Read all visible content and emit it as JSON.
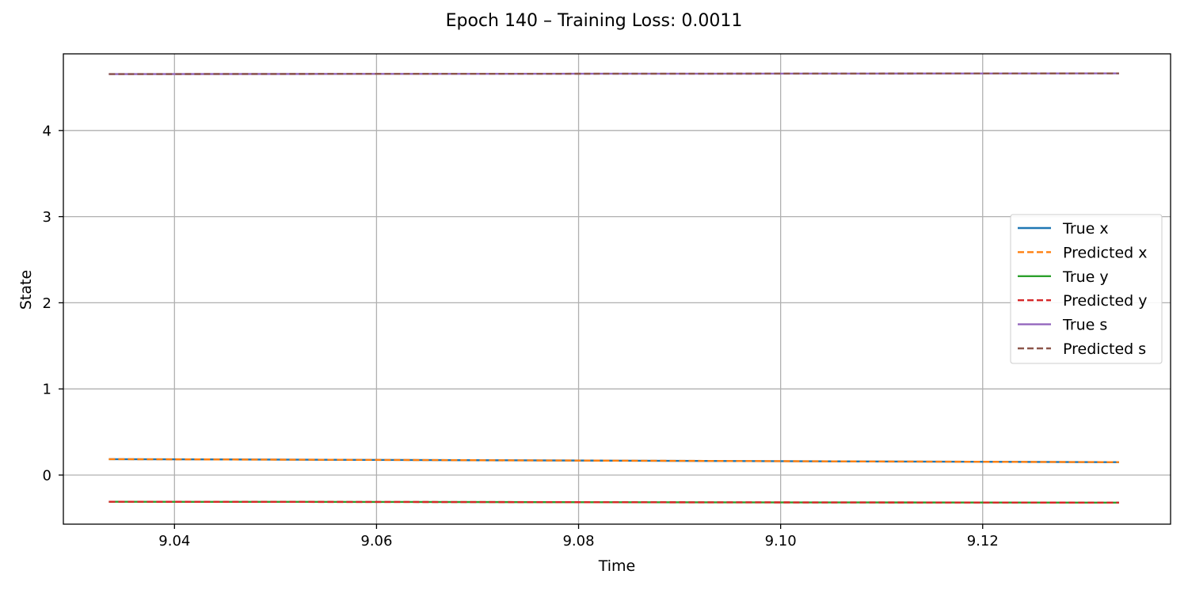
{
  "chart_data": {
    "type": "line",
    "title": "Epoch 140 – Training Loss: 0.0011",
    "xlabel": "Time",
    "ylabel": "State",
    "xlim": [
      9.029,
      9.1386
    ],
    "ylim": [
      -0.57,
      4.89
    ],
    "xticks": [
      9.04,
      9.06,
      9.08,
      9.1,
      9.12
    ],
    "xtick_labels": [
      "9.04",
      "9.06",
      "9.08",
      "9.10",
      "9.12"
    ],
    "yticks": [
      0,
      1,
      2,
      3,
      4
    ],
    "ytick_labels": [
      "0",
      "1",
      "2",
      "3",
      "4"
    ],
    "grid": true,
    "legend_position": "center-right",
    "series": [
      {
        "name": "True x",
        "color": "#1f77b4",
        "dash": false,
        "x": [
          9.0335,
          9.0585,
          9.0835,
          9.1085,
          9.1335
        ],
        "y": [
          0.185,
          0.176,
          0.167,
          0.158,
          0.15
        ]
      },
      {
        "name": "Predicted x",
        "color": "#ff7f0e",
        "dash": true,
        "x": [
          9.0335,
          9.0585,
          9.0835,
          9.1085,
          9.1335
        ],
        "y": [
          0.185,
          0.176,
          0.167,
          0.158,
          0.15
        ]
      },
      {
        "name": "True y",
        "color": "#2ca02c",
        "dash": false,
        "x": [
          9.0335,
          9.0585,
          9.0835,
          9.1085,
          9.1335
        ],
        "y": [
          -0.31,
          -0.312,
          -0.315,
          -0.318,
          -0.32
        ]
      },
      {
        "name": "Predicted y",
        "color": "#d62728",
        "dash": true,
        "x": [
          9.0335,
          9.0585,
          9.0835,
          9.1085,
          9.1335
        ],
        "y": [
          -0.31,
          -0.312,
          -0.315,
          -0.318,
          -0.32
        ]
      },
      {
        "name": "True s",
        "color": "#9467bd",
        "dash": false,
        "x": [
          9.0335,
          9.0585,
          9.0835,
          9.1085,
          9.1335
        ],
        "y": [
          4.655,
          4.657,
          4.659,
          4.661,
          4.663
        ]
      },
      {
        "name": "Predicted s",
        "color": "#8c564b",
        "dash": true,
        "x": [
          9.0335,
          9.0585,
          9.0835,
          9.1085,
          9.1335
        ],
        "y": [
          4.655,
          4.657,
          4.659,
          4.661,
          4.663
        ]
      }
    ]
  }
}
